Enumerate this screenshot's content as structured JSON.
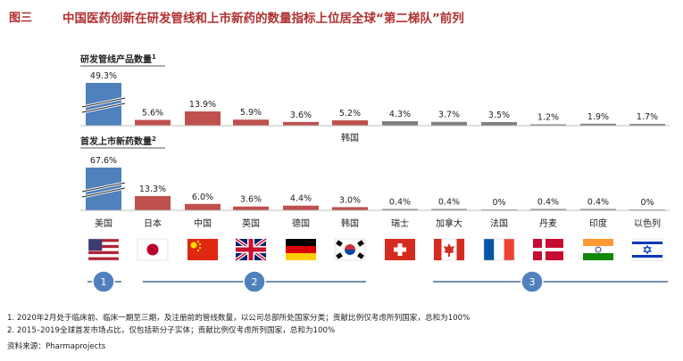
{
  "figure": {
    "label": "图三",
    "title": "中国医药创新在研发管线和上市新药的数量指标上位居全球“第二梯队”前列"
  },
  "chart_data": [
    {
      "type": "bar",
      "title": "研发管线产品数量",
      "title_sup": "1",
      "categories": [
        "美国",
        "日本",
        "中国",
        "英国",
        "德国",
        "韩国",
        "瑞士",
        "加拿大",
        "法国",
        "丹麦",
        "印度",
        "以色列"
      ],
      "values": [
        49.3,
        5.6,
        13.9,
        5.9,
        3.6,
        5.2,
        4.3,
        3.7,
        3.5,
        1.2,
        1.9,
        1.7
      ],
      "labels": [
        "49.3%",
        "5.6%",
        "13.9%",
        "5.9%",
        "3.6%",
        "5.2%",
        "4.3%",
        "3.7%",
        "3.5%",
        "1.2%",
        "1.9%",
        "1.7%"
      ],
      "unit": "%",
      "axis_break": true,
      "annotation": "韩国"
    },
    {
      "type": "bar",
      "title": "首发上市新药数量",
      "title_sup": "2",
      "categories": [
        "美国",
        "日本",
        "中国",
        "英国",
        "德国",
        "韩国",
        "瑞士",
        "加拿大",
        "法国",
        "丹麦",
        "印度",
        "以色列"
      ],
      "values": [
        67.6,
        13.3,
        6.0,
        3.6,
        4.4,
        3.0,
        0.4,
        0.4,
        0,
        0.4,
        0.4,
        0
      ],
      "labels": [
        "67.6%",
        "13.3%",
        "6.0%",
        "3.6%",
        "4.4%",
        "3.0%",
        "0.4%",
        "0.4%",
        "0%",
        "0.4%",
        "0.4%",
        "0%"
      ],
      "unit": "%",
      "axis_break": true
    }
  ],
  "colors": {
    "first_tier": "#4f81bd",
    "second_tier": "#c0504d",
    "third_tier": "#7f7f7f",
    "title": "#b03030",
    "tier_line": "#1f4e79"
  },
  "tiers": [
    {
      "label": "1",
      "from": 0,
      "to": 0
    },
    {
      "label": "2",
      "from": 1,
      "to": 5
    },
    {
      "label": "3",
      "from": 6,
      "to": 11
    }
  ],
  "flags": [
    "us-flag-icon",
    "jp-flag-icon",
    "cn-flag-icon",
    "gb-flag-icon",
    "de-flag-icon",
    "kr-flag-icon",
    "ch-flag-icon",
    "ca-flag-icon",
    "fr-flag-icon",
    "dk-flag-icon",
    "in-flag-icon",
    "il-flag-icon"
  ],
  "notes": [
    "1. 2020年2月处于临床前、临床一期至三期，及注册前的管线数量，以公司总部所处国家分类；贡献比例仅考虑所列国家，总和为100%",
    "2. 2015–2019全球首发市场占比，仅包括新分子实体；贡献比例仅考虑所列国家，总和为100%"
  ],
  "source": "资料来源：Pharmaprojects"
}
